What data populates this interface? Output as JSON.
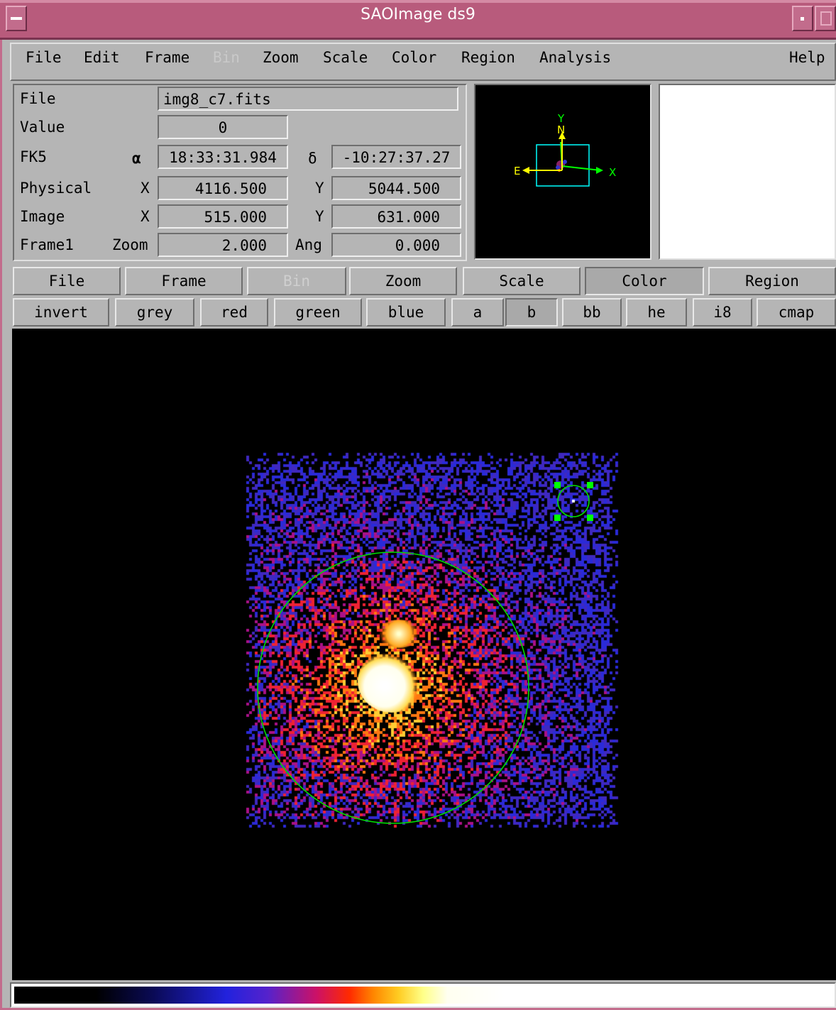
{
  "window": {
    "title": "SAOImage ds9"
  },
  "menubar": {
    "items": [
      {
        "label": "File",
        "mnemonic": "F",
        "enabled": true
      },
      {
        "label": "Edit",
        "mnemonic": "E",
        "enabled": true
      },
      {
        "label": "Frame",
        "mnemonic": "m",
        "enabled": true
      },
      {
        "label": "Bin",
        "mnemonic": "",
        "enabled": false
      },
      {
        "label": "Zoom",
        "mnemonic": "Z",
        "enabled": true
      },
      {
        "label": "Scale",
        "mnemonic": "S",
        "enabled": true
      },
      {
        "label": "Color",
        "mnemonic": "C",
        "enabled": true
      },
      {
        "label": "Region",
        "mnemonic": "R",
        "enabled": true
      },
      {
        "label": "Analysis",
        "mnemonic": "A",
        "enabled": true
      },
      {
        "label": "Help",
        "mnemonic": "H",
        "enabled": true
      }
    ]
  },
  "info": {
    "file_label": "File",
    "file_value": "img8_c7.fits",
    "value_label": "Value",
    "value_value": "0",
    "fk5_label": "FK5",
    "alpha_symbol": "α",
    "alpha_value": "18:33:31.984",
    "delta_symbol": "δ",
    "delta_value": "-10:27:37.27",
    "physical_label": "Physical",
    "physical_x_label": "X",
    "physical_x": "4116.500",
    "physical_y_label": "Y",
    "physical_y": "5044.500",
    "image_label": "Image",
    "image_x_label": "X",
    "image_x": "515.000",
    "image_y_label": "Y",
    "image_y": "631.000",
    "frame_label": "Frame1",
    "zoom_label": "Zoom",
    "zoom_value": "2.000",
    "ang_label": "Ang",
    "ang_value": "0.000"
  },
  "panner": {
    "compass_n": "N",
    "compass_e": "E",
    "axis_x": "X",
    "axis_y": "Y",
    "compass_color": "#ffff00",
    "axis_color": "#00ff00",
    "box_color": "#00ffff"
  },
  "buttonbar_main": [
    {
      "label": "File",
      "enabled": true,
      "active": false
    },
    {
      "label": "Frame",
      "enabled": true,
      "active": false
    },
    {
      "label": "Bin",
      "enabled": false,
      "active": false
    },
    {
      "label": "Zoom",
      "enabled": true,
      "active": false
    },
    {
      "label": "Scale",
      "enabled": true,
      "active": false
    },
    {
      "label": "Color",
      "enabled": true,
      "active": true
    },
    {
      "label": "Region",
      "enabled": true,
      "active": false
    }
  ],
  "buttonbar_color": [
    {
      "label": "invert",
      "active": false
    },
    {
      "label": "grey",
      "active": false
    },
    {
      "label": "red",
      "active": false
    },
    {
      "label": "green",
      "active": false
    },
    {
      "label": "blue",
      "active": false
    },
    {
      "label": "a",
      "active": false
    },
    {
      "label": "b",
      "active": true
    },
    {
      "label": "bb",
      "active": false
    },
    {
      "label": "he",
      "active": false
    },
    {
      "label": "i8",
      "active": false
    },
    {
      "label": "cmap",
      "active": false
    }
  ],
  "regions": {
    "color": "#00dd00",
    "handle_color": "#00ff00"
  }
}
